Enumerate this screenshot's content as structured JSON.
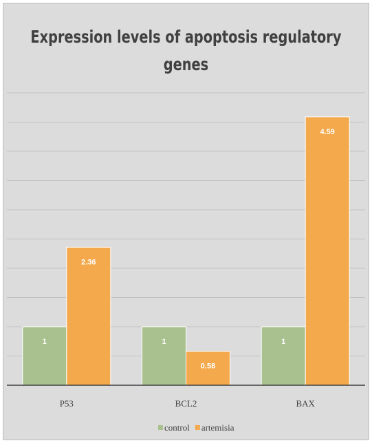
{
  "chart_data": {
    "type": "bar",
    "title": "Expression levels of apoptosis regulatory genes",
    "categories": [
      "P53",
      "BCL2",
      "BAX"
    ],
    "series": [
      {
        "name": "control",
        "values": [
          1,
          1,
          1
        ],
        "color": "#a9c08f"
      },
      {
        "name": "artemisia",
        "values": [
          2.36,
          0.58,
          4.59
        ],
        "color": "#f4a94c"
      }
    ],
    "ylim": [
      0,
      5
    ],
    "grid": true,
    "legend_position": "bottom",
    "xlabel": "",
    "ylabel": ""
  }
}
